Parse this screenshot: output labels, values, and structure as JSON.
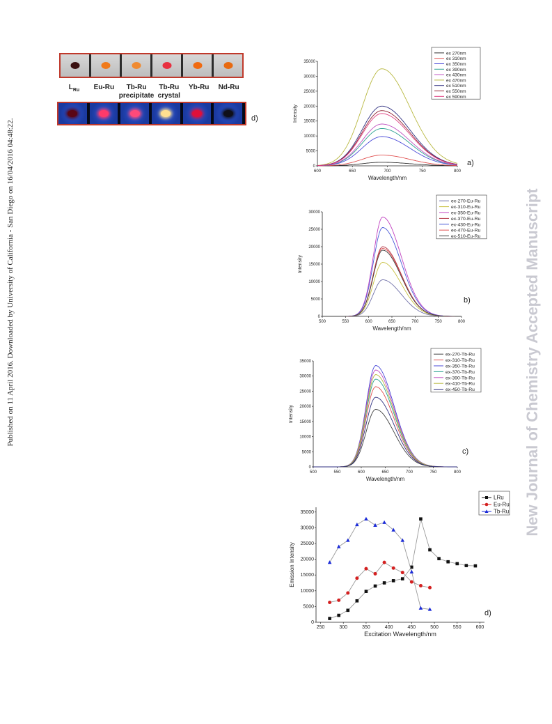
{
  "side_note": "Published on 11 April 2016. Downloaded by University of California - San Diego on 16/04/2016 04:48:22.",
  "watermark": "New Journal of Chemistry Accepted Manuscript",
  "photo": {
    "samples": [
      {
        "name": "L",
        "sub": "Ru",
        "top_color": "#3a1010",
        "bottom_color": "#5a0614"
      },
      {
        "name": "Eu-Ru",
        "top_color": "#f07a1a",
        "bottom_color": "#ff3a6a"
      },
      {
        "name": "Tb-Ru precipitate",
        "top_color": "#f08a30",
        "bottom_color": "#ff4a7a"
      },
      {
        "name": "Tb-Ru crystal",
        "top_color": "#e83040",
        "bottom_color": "#ffe090"
      },
      {
        "name": "Yb-Ru",
        "top_color": "#f06a10",
        "bottom_color": "#e0103a"
      },
      {
        "name": "Nd-Ru",
        "top_color": "#e86a10",
        "bottom_color": "#101018"
      }
    ],
    "panel_label": "d)"
  },
  "chart_data": [
    {
      "type": "line",
      "panel": "a)",
      "xlabel": "Wavelength/nm",
      "ylabel": "Intensity",
      "xlim": [
        600,
        800
      ],
      "ylim": [
        0,
        35000
      ],
      "xticks": [
        600,
        650,
        700,
        750,
        800
      ],
      "yticks": [
        0,
        5000,
        10000,
        15000,
        20000,
        25000,
        30000,
        35000
      ],
      "legend": "top-right",
      "series": [
        {
          "name": "ex 270nm",
          "color": "#333333",
          "peak_x": 692,
          "peak": 1200
        },
        {
          "name": "ex 310nm",
          "color": "#e05050",
          "peak_x": 692,
          "peak": 3600
        },
        {
          "name": "ex 350nm",
          "color": "#4a4ad8",
          "peak_x": 692,
          "peak": 9800
        },
        {
          "name": "ex 390nm",
          "color": "#2aa090",
          "peak_x": 692,
          "peak": 12500
        },
        {
          "name": "ex 430nm",
          "color": "#c050c0",
          "peak_x": 692,
          "peak": 14000
        },
        {
          "name": "ex 470nm",
          "color": "#b8b840",
          "peak_x": 692,
          "peak": 32500
        },
        {
          "name": "ex 510nm",
          "color": "#303080",
          "peak_x": 692,
          "peak": 20000
        },
        {
          "name": "ex 550nm",
          "color": "#902030",
          "peak_x": 692,
          "peak": 18500
        },
        {
          "name": "ex 590nm",
          "color": "#e04080",
          "peak_x": 692,
          "peak": 17500
        }
      ]
    },
    {
      "type": "line",
      "panel": "b)",
      "xlabel": "Wavelength/nm",
      "ylabel": "Intensity",
      "xlim": [
        500,
        800
      ],
      "ylim": [
        0,
        30000
      ],
      "xticks": [
        500,
        550,
        600,
        650,
        700,
        750,
        800
      ],
      "yticks": [
        0,
        5000,
        10000,
        15000,
        20000,
        25000,
        30000
      ],
      "legend": "top-right",
      "series": [
        {
          "name": "ex-270-Eu-Ru",
          "color": "#7070a8",
          "peak_x": 630,
          "peak": 10500
        },
        {
          "name": "ex-310-Eu-Ru",
          "color": "#c8c040",
          "peak_x": 630,
          "peak": 15500
        },
        {
          "name": "ex-350-Eu-Ru",
          "color": "#c040c0",
          "peak_x": 630,
          "peak": 28500
        },
        {
          "name": "ex-370-Eu-Ru",
          "color": "#b03040",
          "peak_x": 630,
          "peak": 20000
        },
        {
          "name": "ex-430-Eu-Ru",
          "color": "#4a5ad8",
          "peak_x": 630,
          "peak": 25500
        },
        {
          "name": "ex-470-Eu-Ru",
          "color": "#e05050",
          "peak_x": 630,
          "peak": 19500
        },
        {
          "name": "ex-510-Eu-Ru",
          "color": "#404040",
          "peak_x": 630,
          "peak": 19000
        }
      ]
    },
    {
      "type": "line",
      "panel": "c)",
      "xlabel": "Wavelength/nm",
      "ylabel": "Intensity",
      "xlim": [
        500,
        800
      ],
      "ylim": [
        0,
        35000
      ],
      "xticks": [
        500,
        550,
        600,
        650,
        700,
        750,
        800
      ],
      "yticks": [
        0,
        5000,
        10000,
        15000,
        20000,
        25000,
        30000,
        35000
      ],
      "legend": "top-right",
      "series": [
        {
          "name": "ex-270-Tb-Ru",
          "color": "#404040",
          "peak_x": 630,
          "peak": 19000
        },
        {
          "name": "ex-310-Tb-Ru",
          "color": "#e05050",
          "peak_x": 630,
          "peak": 26500
        },
        {
          "name": "ex-350-Tb-Ru",
          "color": "#4a4ad8",
          "peak_x": 630,
          "peak": 33500
        },
        {
          "name": "ex-370-Tb-Ru",
          "color": "#2aa090",
          "peak_x": 630,
          "peak": 29000
        },
        {
          "name": "ex-390-Tb-Ru",
          "color": "#c050c0",
          "peak_x": 630,
          "peak": 32000
        },
        {
          "name": "ex-410-Tb-Ru",
          "color": "#b8b840",
          "peak_x": 630,
          "peak": 30500
        },
        {
          "name": "ex-450-Tb-Ru",
          "color": "#303080",
          "peak_x": 630,
          "peak": 23000
        }
      ]
    },
    {
      "type": "line",
      "panel": "d)",
      "xlabel": "Excitation Wavelength/nm",
      "ylabel": "Emission Intensity",
      "xlim": [
        240,
        610
      ],
      "ylim": [
        0,
        36500
      ],
      "xticks": [
        250,
        300,
        350,
        400,
        450,
        500,
        550,
        600
      ],
      "yticks": [
        0,
        5000,
        10000,
        15000,
        20000,
        25000,
        30000,
        35000
      ],
      "legend": "top-right",
      "series": [
        {
          "name": "LRu",
          "color": "#111111",
          "marker": "square",
          "x": [
            270,
            290,
            310,
            330,
            350,
            370,
            390,
            410,
            430,
            450,
            470,
            490,
            510,
            530,
            550,
            570,
            590
          ],
          "y": [
            1200,
            2200,
            3800,
            6800,
            9800,
            11500,
            12500,
            13200,
            13800,
            17500,
            32800,
            23000,
            20200,
            19200,
            18600,
            18000,
            17900
          ]
        },
        {
          "name": "Eu-Ru",
          "color": "#d42020",
          "marker": "circle",
          "x": [
            270,
            290,
            310,
            330,
            350,
            370,
            390,
            410,
            430,
            450,
            470,
            490
          ],
          "y": [
            6300,
            7000,
            9300,
            14000,
            17000,
            15400,
            19000,
            17200,
            15800,
            12800,
            11600,
            11000
          ]
        },
        {
          "name": "Tb-Ru",
          "color": "#1a2ad8",
          "marker": "triangle",
          "x": [
            270,
            290,
            310,
            330,
            350,
            370,
            390,
            410,
            430,
            450,
            470,
            490
          ],
          "y": [
            19000,
            24000,
            26000,
            31000,
            32800,
            30800,
            31700,
            29300,
            26000,
            16000,
            4500,
            4100
          ]
        }
      ]
    }
  ]
}
